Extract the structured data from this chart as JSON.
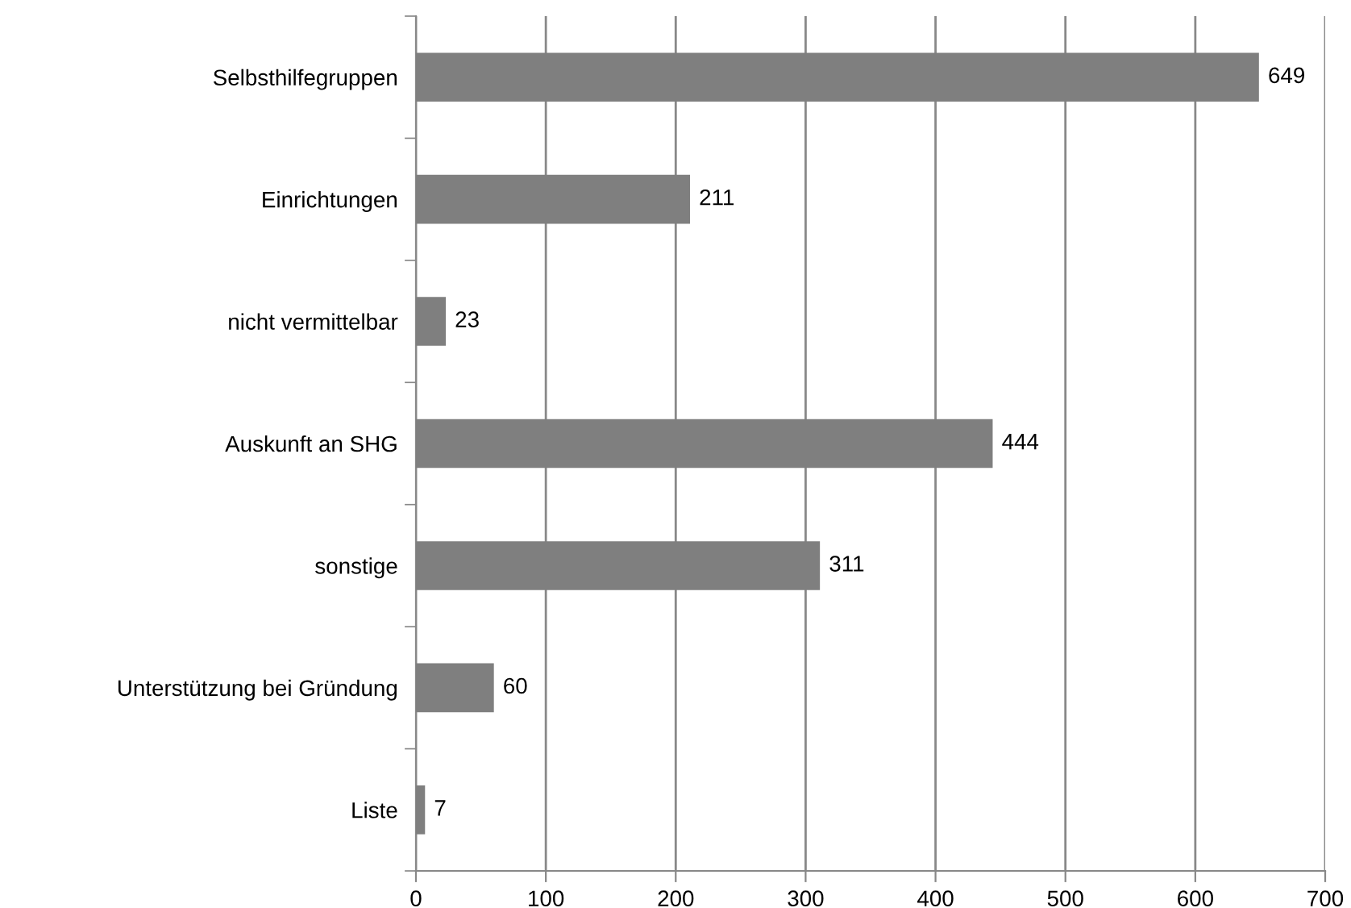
{
  "chart_data": {
    "type": "bar",
    "orientation": "horizontal",
    "categories": [
      "Selbsthilfegruppen",
      "Einrichtungen",
      "nicht vermittelbar",
      "Auskunft an SHG",
      "sonstige",
      "Unterstützung bei Gründung",
      "Liste"
    ],
    "values": [
      649,
      211,
      23,
      444,
      311,
      60,
      7
    ],
    "color": "#7f7f7f",
    "xlim": [
      0,
      700
    ],
    "xticks": [
      0,
      100,
      200,
      300,
      400,
      500,
      600,
      700
    ],
    "grid": "x",
    "data_labels": true
  }
}
